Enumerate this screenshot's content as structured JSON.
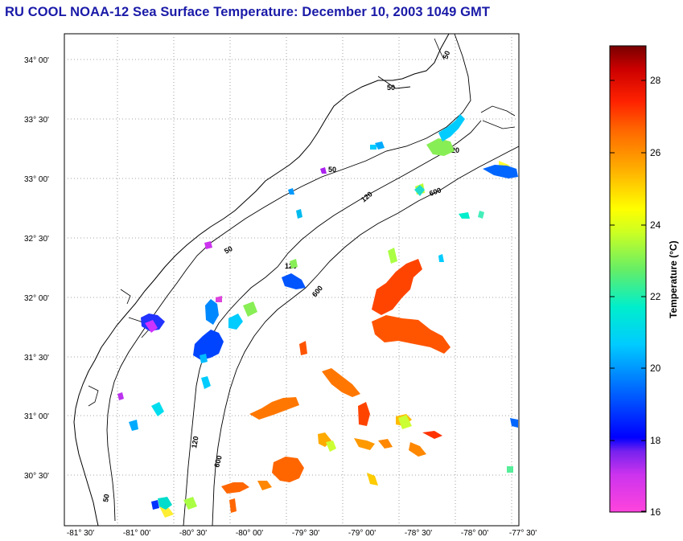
{
  "title": "RU COOL  NOAA-12  Sea Surface Temperature:  December 10, 2003 1049 GMT",
  "map": {
    "lon_range": [
      -81.5,
      -77.5
    ],
    "lat_range": [
      30.25,
      34.25
    ],
    "lon_ticks": [
      "-81° 30'",
      "-81° 00'",
      "-80° 30'",
      "-80° 00'",
      "-79° 30'",
      "-79° 00'",
      "-78° 30'",
      "-78° 00'",
      "-77° 30'"
    ],
    "lat_ticks": [
      "34° 00'",
      "33° 30'",
      "33° 00'",
      "32° 30'",
      "32° 00'",
      "31° 30'",
      "31° 00'",
      "30° 30'"
    ],
    "grid": "dotted",
    "contour_labels": [
      "50",
      "50",
      "50",
      "50",
      "50",
      "120",
      "120",
      "120",
      "120",
      "600",
      "600",
      "600"
    ]
  },
  "colorbar": {
    "label": "Temperature (°C)",
    "ticks": [
      "28",
      "26",
      "24",
      "22",
      "20",
      "18",
      "16"
    ],
    "range": [
      16,
      29
    ],
    "colors": [
      "#ff33cc",
      "#aa22ee",
      "#0000ff",
      "#0088ff",
      "#00eedd",
      "#88ee44",
      "#ffff00",
      "#ffaa00",
      "#ff4400",
      "#ff0000",
      "#880000"
    ]
  }
}
